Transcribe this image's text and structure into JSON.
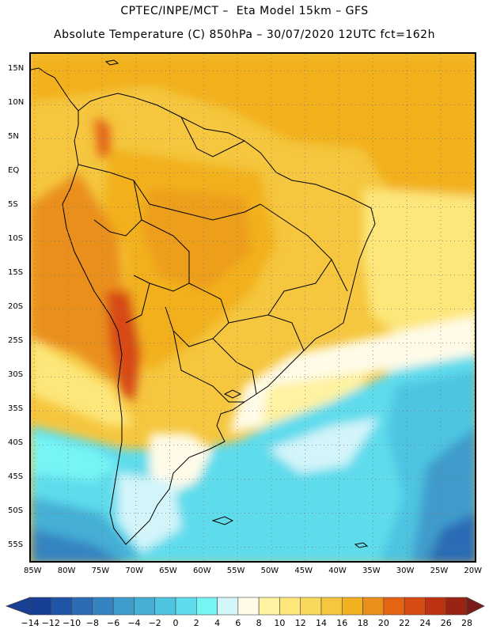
{
  "header": {
    "line1": "CPTEC/INPE/MCT –  Eta Model 15km – GFS",
    "line2": "Absolute Temperature (C) 850hPa – 30/07/2020 12UTC fct=162h"
  },
  "map": {
    "lat_labels": [
      "15N",
      "10N",
      "5N",
      "EQ",
      "5S",
      "10S",
      "15S",
      "20S",
      "25S",
      "30S",
      "35S",
      "40S",
      "45S",
      "50S",
      "55S"
    ],
    "lat_values": [
      15,
      10,
      5,
      0,
      -5,
      -10,
      -15,
      -20,
      -25,
      -30,
      -35,
      -40,
      -45,
      -50,
      -55
    ],
    "lon_labels": [
      "85W",
      "80W",
      "75W",
      "70W",
      "65W",
      "60W",
      "55W",
      "50W",
      "45W",
      "40W",
      "35W",
      "30W",
      "25W",
      "20W"
    ],
    "lon_values": [
      -85,
      -80,
      -75,
      -70,
      -65,
      -60,
      -55,
      -50,
      -45,
      -40,
      -35,
      -30,
      -25,
      -20
    ],
    "extent": {
      "lon_min": -85.5,
      "lon_max": -19.5,
      "lat_min": -57.5,
      "lat_max": 17.5
    },
    "grid": true
  },
  "colorbar": {
    "labels": [
      "−14",
      "−12",
      "−10",
      "−8",
      "−6",
      "−4",
      "−2",
      "0",
      "2",
      "4",
      "6",
      "8",
      "10",
      "12",
      "14",
      "16",
      "18",
      "20",
      "22",
      "24",
      "26",
      "28"
    ],
    "colors": [
      "#173f95",
      "#1f55a6",
      "#2b6cb5",
      "#3584c2",
      "#3f9bcc",
      "#45afd6",
      "#4ec4e1",
      "#5fdcec",
      "#77f5f5",
      "#d3f5fa",
      "#fffbe8",
      "#fff2a0",
      "#fde77a",
      "#f8d85c",
      "#f5c63e",
      "#f2b11f",
      "#ea8f1a",
      "#e56413",
      "#d74a12",
      "#bf3211",
      "#9a2414",
      "#7a1c18"
    ]
  }
}
